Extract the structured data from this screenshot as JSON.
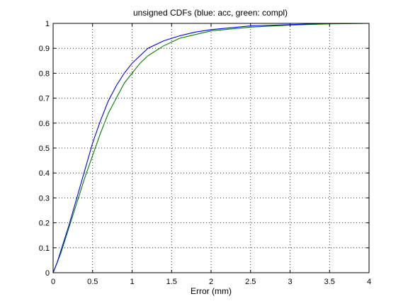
{
  "chart_data": {
    "type": "line",
    "title": "unsigned CDFs (blue: acc, green: compl)",
    "xlabel": "Error (mm)",
    "ylabel": "",
    "xlim": [
      0,
      4
    ],
    "ylim": [
      0,
      1
    ],
    "grid": true,
    "x_ticks": [
      0,
      0.5,
      1,
      1.5,
      2,
      2.5,
      3,
      3.5,
      4
    ],
    "x_tick_labels": [
      "0",
      "0.5",
      "1",
      "1.5",
      "2",
      "2.5",
      "3",
      "3.5",
      "4"
    ],
    "y_ticks": [
      0,
      0.1,
      0.2,
      0.3,
      0.4,
      0.5,
      0.6,
      0.7,
      0.8,
      0.9,
      1
    ],
    "y_tick_labels": [
      "0",
      "0.1",
      "0.2",
      "0.3",
      "0.4",
      "0.5",
      "0.6",
      "0.7",
      "0.8",
      "0.9",
      "1"
    ],
    "series": [
      {
        "color": "#0000ff",
        "x": [
          0,
          0.05,
          0.1,
          0.2,
          0.3,
          0.4,
          0.5,
          0.6,
          0.7,
          0.8,
          0.9,
          1.0,
          1.1,
          1.2,
          1.4,
          1.6,
          1.8,
          2.0,
          2.5,
          3.0,
          3.5,
          4.0
        ],
        "y": [
          0,
          0.04,
          0.09,
          0.19,
          0.3,
          0.41,
          0.52,
          0.61,
          0.69,
          0.75,
          0.8,
          0.84,
          0.87,
          0.9,
          0.93,
          0.95,
          0.965,
          0.975,
          0.99,
          0.995,
          1.0,
          1.0
        ]
      },
      {
        "color": "#008000",
        "x": [
          0,
          0.05,
          0.1,
          0.2,
          0.3,
          0.4,
          0.5,
          0.6,
          0.7,
          0.8,
          0.9,
          1.0,
          1.1,
          1.2,
          1.4,
          1.6,
          1.8,
          2.0,
          2.5,
          3.0,
          3.5,
          4.0
        ],
        "y": [
          0,
          0.04,
          0.08,
          0.18,
          0.28,
          0.38,
          0.47,
          0.56,
          0.64,
          0.7,
          0.76,
          0.8,
          0.84,
          0.87,
          0.91,
          0.94,
          0.955,
          0.97,
          0.985,
          0.993,
          0.998,
          1.0
        ]
      }
    ]
  }
}
